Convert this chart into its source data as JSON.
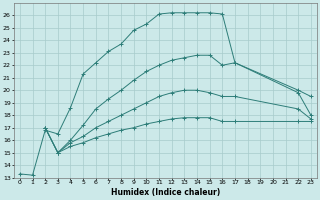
{
  "xlabel": "Humidex (Indice chaleur)",
  "bg_color": "#cce9e9",
  "line_color": "#2d7d78",
  "grid_color": "#a8cccc",
  "xlim": [
    -0.5,
    23.5
  ],
  "ylim": [
    13,
    27
  ],
  "xticks": [
    0,
    1,
    2,
    3,
    4,
    5,
    6,
    7,
    8,
    9,
    10,
    11,
    12,
    13,
    14,
    15,
    16,
    17,
    18,
    19,
    20,
    21,
    22,
    23
  ],
  "yticks": [
    13,
    14,
    15,
    16,
    17,
    18,
    19,
    20,
    21,
    22,
    23,
    24,
    25,
    26
  ],
  "lines": [
    {
      "x": [
        0,
        1,
        2,
        3,
        4,
        5,
        6,
        7,
        8,
        9,
        10,
        11,
        12,
        13,
        14,
        15,
        16,
        17,
        22,
        23
      ],
      "y": [
        13.3,
        13.2,
        16.8,
        16.5,
        18.6,
        21.3,
        22.2,
        23.1,
        23.7,
        24.8,
        25.3,
        26.1,
        26.2,
        26.2,
        26.2,
        26.2,
        26.1,
        22.2,
        20.0,
        19.5
      ]
    },
    {
      "x": [
        2,
        3,
        4,
        5,
        6,
        7,
        8,
        9,
        10,
        11,
        12,
        13,
        14,
        15,
        16,
        17,
        22,
        23
      ],
      "y": [
        17.0,
        15.0,
        16.0,
        17.2,
        18.5,
        19.3,
        20.0,
        20.8,
        21.5,
        22.0,
        22.4,
        22.6,
        22.8,
        22.8,
        22.0,
        22.2,
        19.8,
        18.0
      ]
    },
    {
      "x": [
        2,
        3,
        4,
        5,
        6,
        7,
        8,
        9,
        10,
        11,
        12,
        13,
        14,
        15,
        16,
        17,
        22,
        23
      ],
      "y": [
        17.0,
        15.0,
        15.8,
        16.3,
        17.0,
        17.5,
        18.0,
        18.5,
        19.0,
        19.5,
        19.8,
        20.0,
        20.0,
        19.8,
        19.5,
        19.5,
        18.5,
        17.7
      ]
    },
    {
      "x": [
        2,
        3,
        4,
        5,
        6,
        7,
        8,
        9,
        10,
        11,
        12,
        13,
        14,
        15,
        16,
        17,
        22,
        23
      ],
      "y": [
        17.0,
        15.0,
        15.5,
        15.8,
        16.2,
        16.5,
        16.8,
        17.0,
        17.3,
        17.5,
        17.7,
        17.8,
        17.8,
        17.8,
        17.5,
        17.5,
        17.5,
        17.5
      ]
    }
  ]
}
